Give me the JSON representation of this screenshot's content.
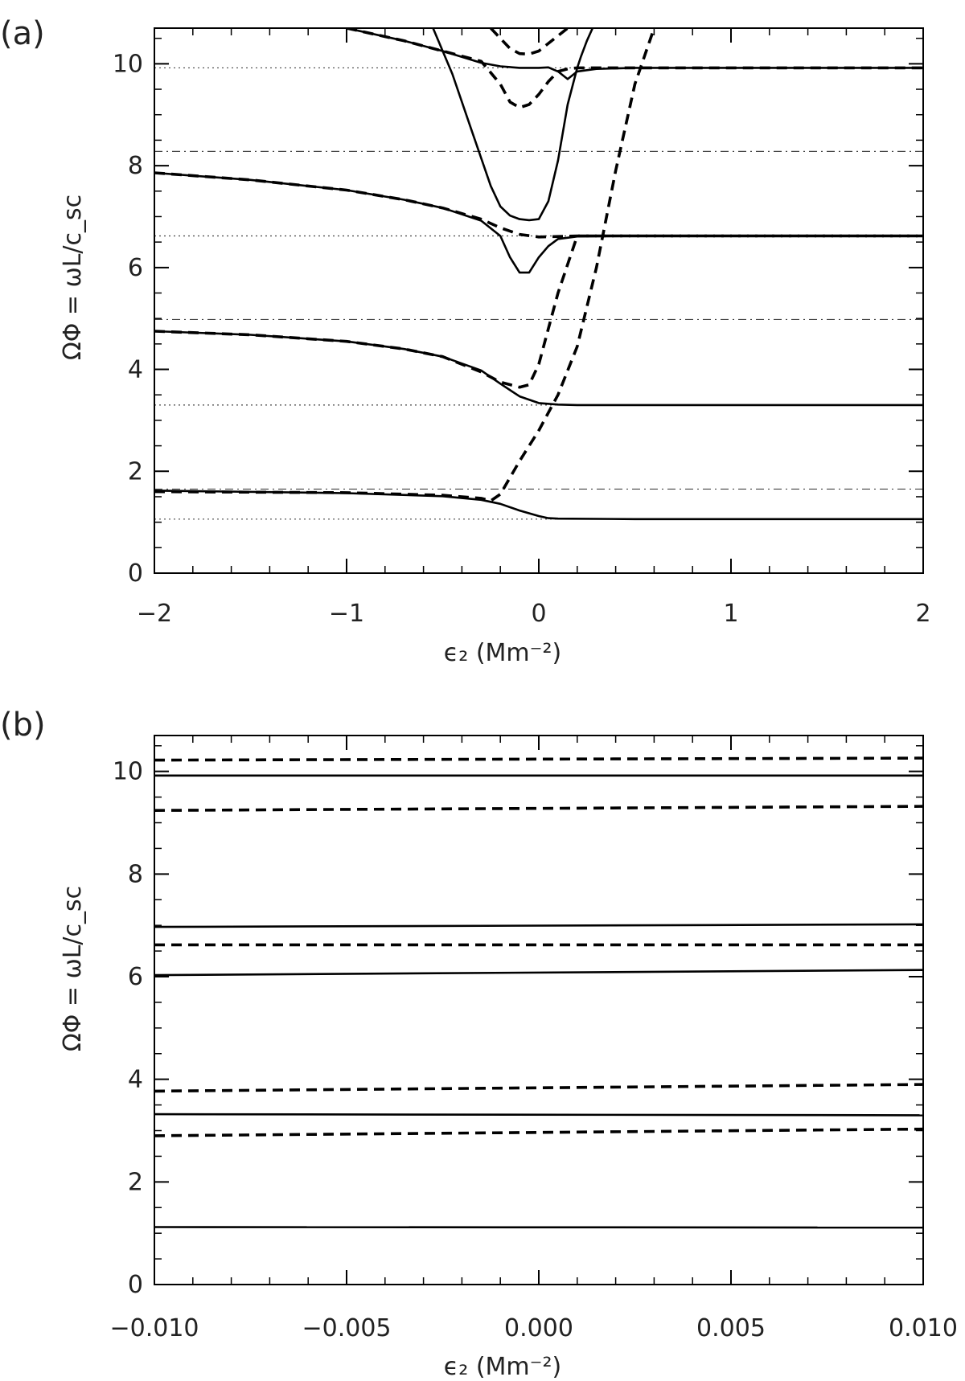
{
  "chart_data": [
    {
      "type": "line",
      "panel_label": "(a)",
      "xlabel": "ϵ₂ (Mm⁻²)",
      "ylabel": "ΩΦ = ωL/c_sc",
      "xlim": [
        -2,
        2
      ],
      "ylim": [
        0,
        10.7
      ],
      "xticks": [
        -2,
        -1,
        0,
        1,
        2
      ],
      "xtick_labels": [
        "−2",
        "−1",
        "0",
        "1",
        "2"
      ],
      "yticks": [
        0,
        2,
        4,
        6,
        8,
        10
      ],
      "ytick_labels": [
        "0",
        "2",
        "4",
        "6",
        "8",
        "10"
      ],
      "x_minor_step": 0.2,
      "y_minor_step": 0.5,
      "grid": false,
      "reference_lines": [
        {
          "style": "dotted",
          "y": 1.06
        },
        {
          "style": "dotted",
          "y": 3.3
        },
        {
          "style": "dotted",
          "y": 6.62
        },
        {
          "style": "dotted",
          "y": 9.92
        },
        {
          "style": "dashdot",
          "y": 1.65
        },
        {
          "style": "dashdot",
          "y": 4.98
        },
        {
          "style": "dashdot",
          "y": 8.28
        }
      ],
      "series": [
        {
          "style": "solid",
          "x": [
            -2,
            -1,
            -0.5,
            -0.3,
            -0.2,
            -0.1,
            0,
            0.05,
            0.1,
            0.5,
            1,
            2
          ],
          "y": [
            1.62,
            1.57,
            1.51,
            1.44,
            1.36,
            1.23,
            1.12,
            1.08,
            1.07,
            1.06,
            1.06,
            1.06
          ]
        },
        {
          "style": "solid",
          "x": [
            -2,
            -1.5,
            -1,
            -0.7,
            -0.5,
            -0.3,
            -0.2,
            -0.1,
            0,
            0.1,
            0.2,
            0.5,
            1,
            2
          ],
          "y": [
            4.75,
            4.68,
            4.55,
            4.4,
            4.25,
            3.98,
            3.72,
            3.47,
            3.34,
            3.31,
            3.3,
            3.3,
            3.3,
            3.3
          ]
        },
        {
          "style": "solid",
          "x": [
            -2,
            -1.5,
            -1,
            -0.7,
            -0.5,
            -0.3,
            -0.2,
            -0.15,
            -0.1,
            -0.05,
            0,
            0.05,
            0.1,
            0.2,
            0.5,
            2
          ],
          "y": [
            7.86,
            7.72,
            7.52,
            7.33,
            7.17,
            6.92,
            6.62,
            6.2,
            5.9,
            5.9,
            6.2,
            6.42,
            6.56,
            6.61,
            6.62,
            6.62
          ]
        },
        {
          "style": "solid",
          "x": [
            -1,
            -0.7,
            -0.5,
            -0.3,
            -0.2,
            -0.1,
            0,
            0.05,
            0.1,
            0.15,
            0.2,
            0.3,
            0.5,
            1,
            2
          ],
          "y": [
            10.7,
            10.45,
            10.25,
            10.02,
            9.95,
            9.92,
            9.92,
            9.93,
            9.85,
            9.7,
            9.85,
            9.9,
            9.92,
            9.92,
            9.92
          ]
        },
        {
          "style": "solid",
          "x": [
            -0.55,
            -0.45,
            -0.35,
            -0.25,
            -0.2,
            -0.15,
            -0.1,
            -0.05,
            0,
            0.05,
            0.1,
            0.15,
            0.2,
            0.22,
            0.25,
            0.28
          ],
          "y": [
            10.7,
            9.8,
            8.7,
            7.6,
            7.2,
            7.02,
            6.95,
            6.93,
            6.95,
            7.3,
            8.1,
            9.2,
            9.92,
            10.15,
            10.45,
            10.7
          ]
        },
        {
          "style": "dashed",
          "x": [
            -2,
            -1,
            -0.5,
            -0.3,
            -0.25,
            -0.2,
            -0.1,
            -0.05,
            0,
            0.05,
            0.1,
            0.2,
            0.3,
            0.4,
            0.5,
            0.6
          ],
          "y": [
            1.6,
            1.58,
            1.53,
            1.47,
            1.42,
            1.55,
            2.2,
            2.5,
            2.8,
            3.15,
            3.5,
            4.45,
            6.0,
            7.9,
            9.6,
            10.7
          ]
        },
        {
          "style": "dashed",
          "x": [
            -2,
            -1.5,
            -1,
            -0.7,
            -0.5,
            -0.3,
            -0.2,
            -0.1,
            -0.05,
            0,
            0.05,
            0.1,
            0.2,
            0.5,
            2
          ],
          "y": [
            4.75,
            4.68,
            4.55,
            4.4,
            4.25,
            3.95,
            3.75,
            3.65,
            3.7,
            4.1,
            4.8,
            5.5,
            6.62,
            6.62,
            6.62
          ]
        },
        {
          "style": "dashed",
          "x": [
            -2,
            -1.5,
            -1,
            -0.7,
            -0.5,
            -0.3,
            -0.2,
            -0.1,
            0,
            0.1,
            0.2,
            0.5,
            2
          ],
          "y": [
            7.86,
            7.72,
            7.52,
            7.33,
            7.17,
            6.95,
            6.78,
            6.65,
            6.6,
            6.61,
            6.62,
            6.62,
            6.62
          ]
        },
        {
          "style": "dashed",
          "x": [
            -1,
            -0.7,
            -0.5,
            -0.3,
            -0.2,
            -0.15,
            -0.1,
            -0.05,
            0,
            0.05,
            0.1,
            0.15,
            0.2,
            0.3,
            0.5,
            2
          ],
          "y": [
            10.7,
            10.45,
            10.25,
            10.05,
            9.6,
            9.25,
            9.14,
            9.2,
            9.4,
            9.65,
            9.85,
            9.9,
            9.92,
            9.92,
            9.92,
            9.92
          ]
        },
        {
          "style": "dashed",
          "x": [
            -0.25,
            -0.2,
            -0.15,
            -0.1,
            -0.05,
            0,
            0.05,
            0.1,
            0.15
          ],
          "y": [
            10.7,
            10.5,
            10.3,
            10.2,
            10.19,
            10.25,
            10.4,
            10.55,
            10.7
          ]
        }
      ]
    },
    {
      "type": "line",
      "panel_label": "(b)",
      "xlabel": "ϵ₂ (Mm⁻²)",
      "ylabel": "ΩΦ = ωL/c_sc",
      "xlim": [
        -0.01,
        0.01
      ],
      "ylim": [
        0,
        10.7
      ],
      "xticks": [
        -0.01,
        -0.005,
        0,
        0.005,
        0.01
      ],
      "xtick_labels": [
        "−0.010",
        "−0.005",
        "0.000",
        "0.005",
        "0.010"
      ],
      "yticks": [
        0,
        2,
        4,
        6,
        8,
        10
      ],
      "ytick_labels": [
        "0",
        "2",
        "4",
        "6",
        "8",
        "10"
      ],
      "x_minor_step": 0.001,
      "y_minor_step": 0.5,
      "grid": false,
      "reference_lines": [],
      "series": [
        {
          "style": "solid",
          "x": [
            -0.01,
            0.01
          ],
          "y": [
            1.12,
            1.11
          ]
        },
        {
          "style": "solid",
          "x": [
            -0.01,
            0.01
          ],
          "y": [
            3.32,
            3.3
          ]
        },
        {
          "style": "solid",
          "x": [
            -0.01,
            0.01
          ],
          "y": [
            6.03,
            6.13
          ]
        },
        {
          "style": "solid",
          "x": [
            -0.01,
            0.01
          ],
          "y": [
            6.97,
            7.02
          ]
        },
        {
          "style": "solid",
          "x": [
            -0.01,
            0.01
          ],
          "y": [
            9.92,
            9.92
          ]
        },
        {
          "style": "dashed",
          "x": [
            -0.01,
            0.01
          ],
          "y": [
            2.9,
            3.03
          ]
        },
        {
          "style": "dashed",
          "x": [
            -0.01,
            0.01
          ],
          "y": [
            3.77,
            3.9
          ]
        },
        {
          "style": "dashed",
          "x": [
            -0.01,
            0.01
          ],
          "y": [
            6.62,
            6.62
          ]
        },
        {
          "style": "dashed",
          "x": [
            -0.01,
            0.01
          ],
          "y": [
            9.24,
            9.32
          ]
        },
        {
          "style": "dashed",
          "x": [
            -0.01,
            0.01
          ],
          "y": [
            10.22,
            10.26
          ]
        }
      ]
    }
  ]
}
